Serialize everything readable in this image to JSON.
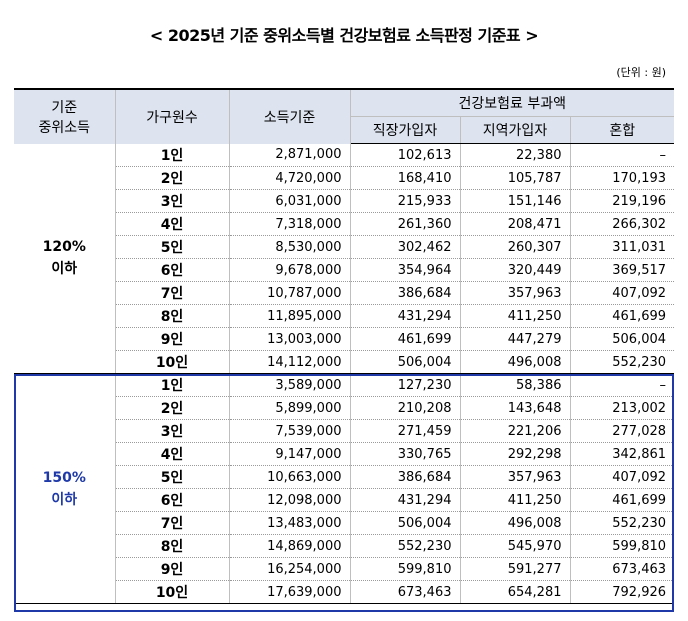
{
  "title": "< 2025년 기준 중위소득별 건강보험료 소득판정 기준표 >",
  "unit": "(단위 : 원)",
  "headers": {
    "group": [
      "기준",
      "중위소득"
    ],
    "household": "가구원수",
    "income": "소득기준",
    "premium": "건강보험료 부과액",
    "employee": "직장가입자",
    "regional": "지역가입자",
    "mixed": "혼합"
  },
  "groups": [
    {
      "label": [
        "120%",
        "이하"
      ],
      "color": "#000000",
      "rows": [
        {
          "household": "1인",
          "income": "2,871,000",
          "employee": "102,613",
          "regional": "22,380",
          "mixed": "–"
        },
        {
          "household": "2인",
          "income": "4,720,000",
          "employee": "168,410",
          "regional": "105,787",
          "mixed": "170,193"
        },
        {
          "household": "3인",
          "income": "6,031,000",
          "employee": "215,933",
          "regional": "151,146",
          "mixed": "219,196"
        },
        {
          "household": "4인",
          "income": "7,318,000",
          "employee": "261,360",
          "regional": "208,471",
          "mixed": "266,302"
        },
        {
          "household": "5인",
          "income": "8,530,000",
          "employee": "302,462",
          "regional": "260,307",
          "mixed": "311,031"
        },
        {
          "household": "6인",
          "income": "9,678,000",
          "employee": "354,964",
          "regional": "320,449",
          "mixed": "369,517"
        },
        {
          "household": "7인",
          "income": "10,787,000",
          "employee": "386,684",
          "regional": "357,963",
          "mixed": "407,092"
        },
        {
          "household": "8인",
          "income": "11,895,000",
          "employee": "431,294",
          "regional": "411,250",
          "mixed": "461,699"
        },
        {
          "household": "9인",
          "income": "13,003,000",
          "employee": "461,699",
          "regional": "447,279",
          "mixed": "506,004"
        },
        {
          "household": "10인",
          "income": "14,112,000",
          "employee": "506,004",
          "regional": "496,008",
          "mixed": "552,230"
        }
      ]
    },
    {
      "label": [
        "150%",
        "이하"
      ],
      "color": "#1f3aa8",
      "rows": [
        {
          "household": "1인",
          "income": "3,589,000",
          "employee": "127,230",
          "regional": "58,386",
          "mixed": "–"
        },
        {
          "household": "2인",
          "income": "5,899,000",
          "employee": "210,208",
          "regional": "143,648",
          "mixed": "213,002"
        },
        {
          "household": "3인",
          "income": "7,539,000",
          "employee": "271,459",
          "regional": "221,206",
          "mixed": "277,028"
        },
        {
          "household": "4인",
          "income": "9,147,000",
          "employee": "330,765",
          "regional": "292,298",
          "mixed": "342,861"
        },
        {
          "household": "5인",
          "income": "10,663,000",
          "employee": "386,684",
          "regional": "357,963",
          "mixed": "407,092"
        },
        {
          "household": "6인",
          "income": "12,098,000",
          "employee": "431,294",
          "regional": "411,250",
          "mixed": "461,699"
        },
        {
          "household": "7인",
          "income": "13,483,000",
          "employee": "506,004",
          "regional": "496,008",
          "mixed": "552,230"
        },
        {
          "household": "8인",
          "income": "14,869,000",
          "employee": "552,230",
          "regional": "545,970",
          "mixed": "599,810"
        },
        {
          "household": "9인",
          "income": "16,254,000",
          "employee": "599,810",
          "regional": "591,277",
          "mixed": "673,463"
        },
        {
          "household": "10인",
          "income": "17,639,000",
          "employee": "673,463",
          "regional": "654,281",
          "mixed": "792,926"
        }
      ]
    }
  ]
}
